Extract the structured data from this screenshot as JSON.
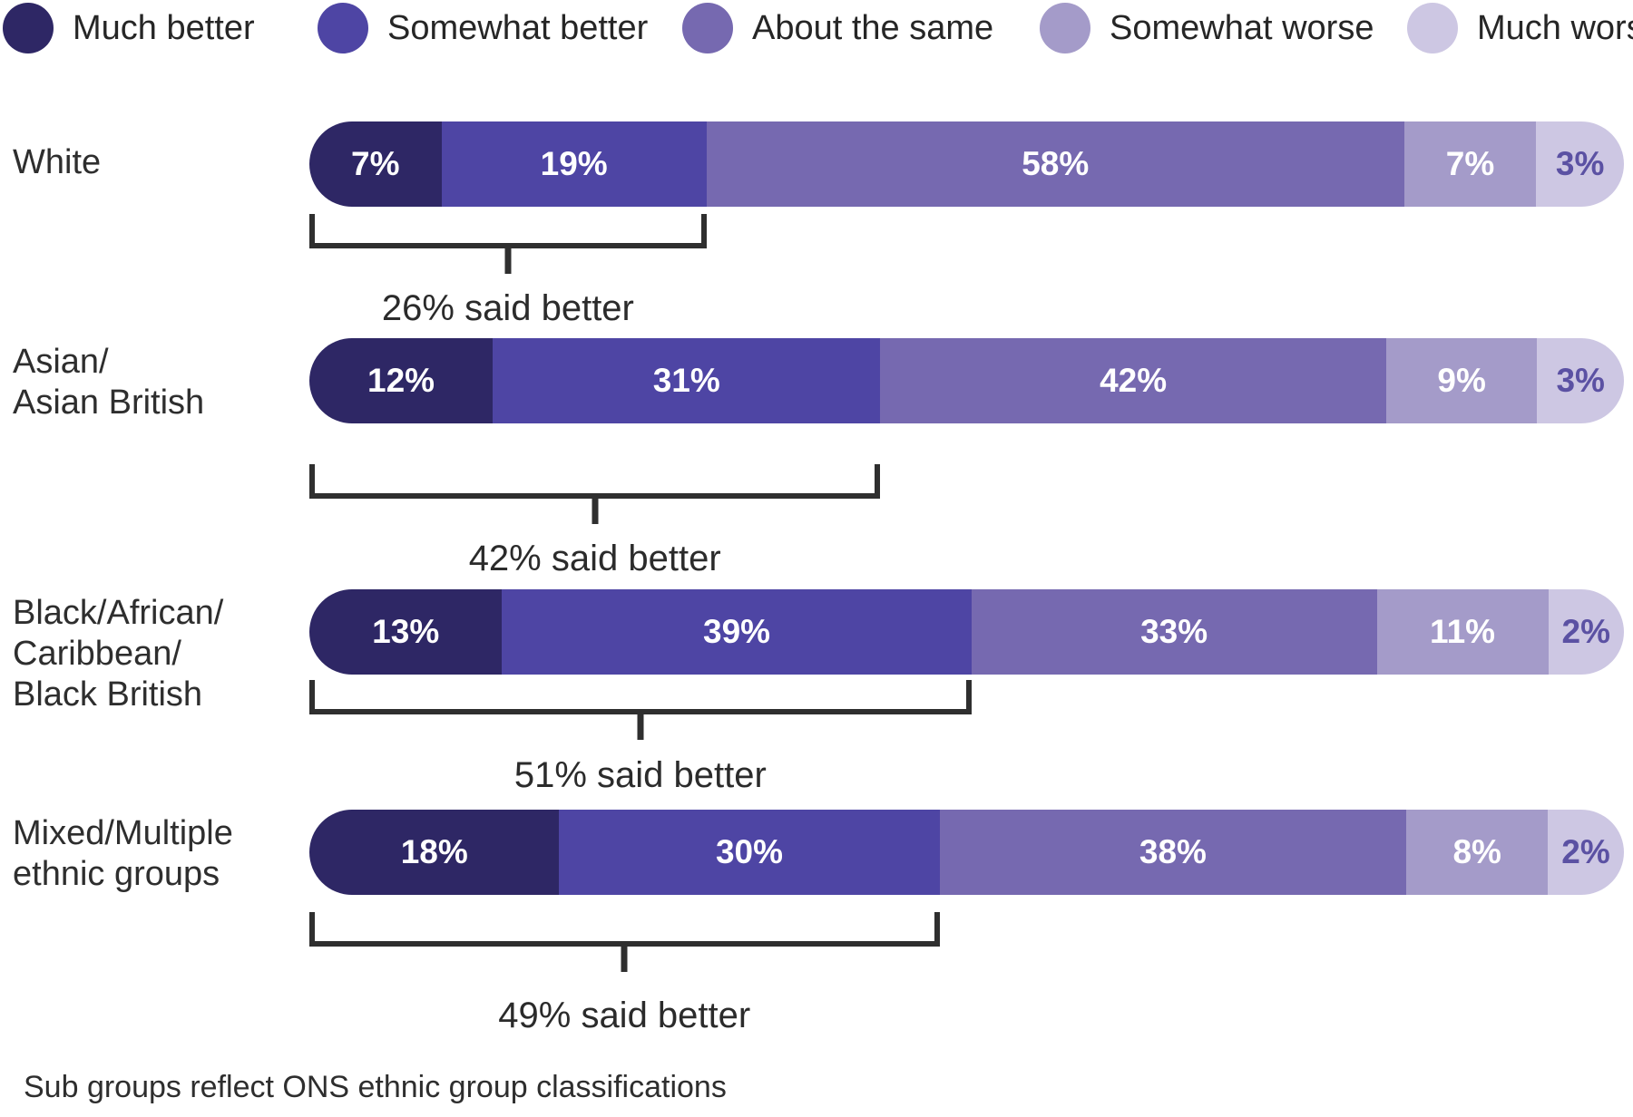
{
  "chart_data": {
    "type": "bar",
    "stacked": true,
    "orientation": "horizontal",
    "unit": "%",
    "legend_position": "top",
    "grid": false,
    "legend": [
      {
        "label": "Much better",
        "color": "#2e2765"
      },
      {
        "label": "Somewhat better",
        "color": "#4e45a4"
      },
      {
        "label": "About the same",
        "color": "#7669b0"
      },
      {
        "label": "Somewhat worse",
        "color": "#a49bc9"
      },
      {
        "label": "Much worse",
        "color": "#cdc7e3"
      }
    ],
    "value_label_color_on_dark": "#ffffff",
    "value_label_color_on_light": "#5b51a3",
    "rows": [
      {
        "category_lines": [
          "White"
        ],
        "values": [
          7,
          19,
          58,
          7,
          3
        ],
        "value_labels": [
          "7%",
          "19%",
          "58%",
          "7%",
          "3%"
        ],
        "annotation": "26% said better"
      },
      {
        "category_lines": [
          "Asian/",
          "Asian British"
        ],
        "values": [
          12,
          31,
          42,
          9,
          3
        ],
        "value_labels": [
          "12%",
          "31%",
          "42%",
          "9%",
          "3%"
        ],
        "annotation": "42% said better"
      },
      {
        "category_lines": [
          "Black/African/",
          "Caribbean/",
          "Black British"
        ],
        "values": [
          13,
          39,
          33,
          11,
          2
        ],
        "value_labels": [
          "13%",
          "39%",
          "33%",
          "11%",
          "2%"
        ],
        "annotation": "51% said better"
      },
      {
        "category_lines": [
          "Mixed/Multiple",
          "ethnic groups"
        ],
        "values": [
          18,
          30,
          38,
          8,
          2
        ],
        "value_labels": [
          "18%",
          "30%",
          "38%",
          "8%",
          "2%"
        ],
        "annotation": "49% said better"
      }
    ],
    "annotation_spans_series": [
      "Much better",
      "Somewhat better"
    ]
  },
  "footnote": "Sub groups reflect ONS ethnic group classifications"
}
